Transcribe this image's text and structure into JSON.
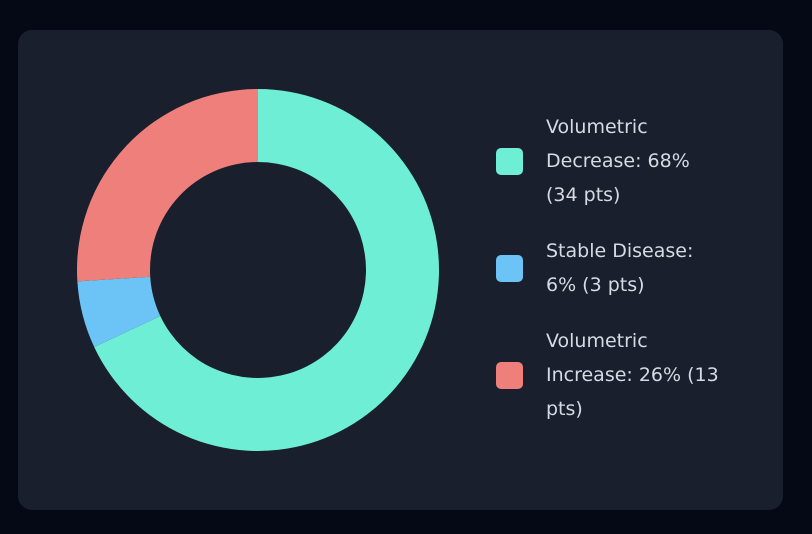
{
  "chart_data": {
    "type": "pie",
    "categories": [
      "Volumetric Decrease: 68% (34 pts)",
      "Stable Disease: 6% (3 pts)",
      "Volumetric Increase: 26% (13 pts)"
    ],
    "values": [
      68,
      6,
      26
    ],
    "colors": [
      "#6eefd5",
      "#6cc3f5",
      "#ef7f7a"
    ],
    "legend": "right"
  }
}
